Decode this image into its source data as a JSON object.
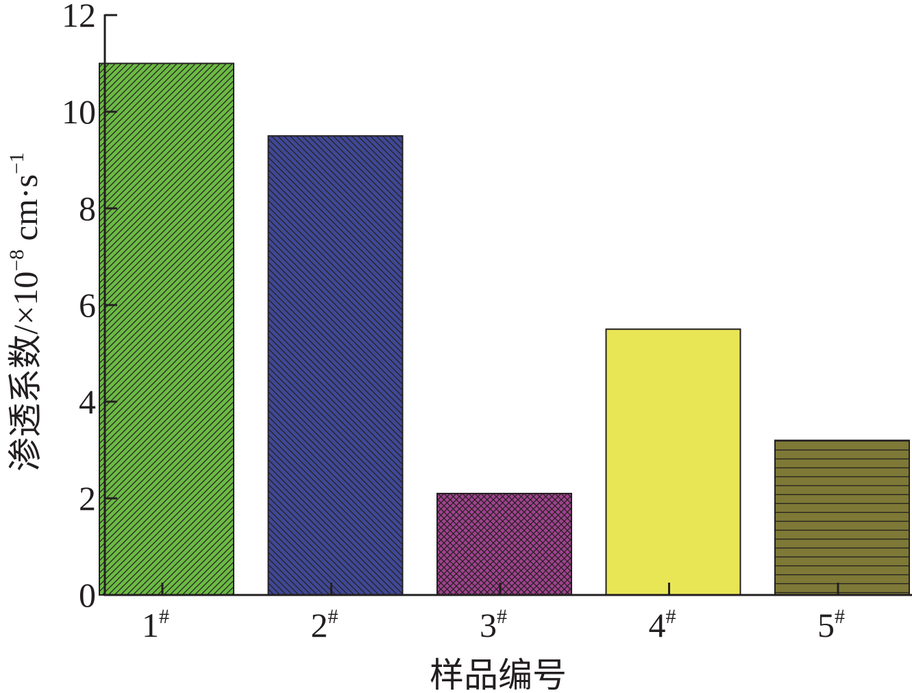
{
  "chart_data": {
    "type": "bar",
    "categories": [
      "1",
      "2",
      "3",
      "4",
      "5"
    ],
    "category_suffix": "#",
    "values": [
      11.0,
      9.5,
      2.1,
      5.5,
      3.2
    ],
    "colors": [
      "#6bba44",
      "#3f4895",
      "#a0428f",
      "#e8e655",
      "#7e7936"
    ],
    "patterns": [
      "diagonal-up",
      "diagonal-down",
      "crosshatch",
      "none",
      "horizontal"
    ],
    "xlabel": "样品编号",
    "ylabel": {
      "main": "渗透系数/×10",
      "exp1": "−8",
      "unit": " cm·s",
      "exp2": "−1"
    },
    "ylim": [
      0,
      12
    ],
    "yticks": [
      "0",
      "2",
      "4",
      "6",
      "8",
      "10",
      "12"
    ],
    "grid": false,
    "legend": "none"
  }
}
